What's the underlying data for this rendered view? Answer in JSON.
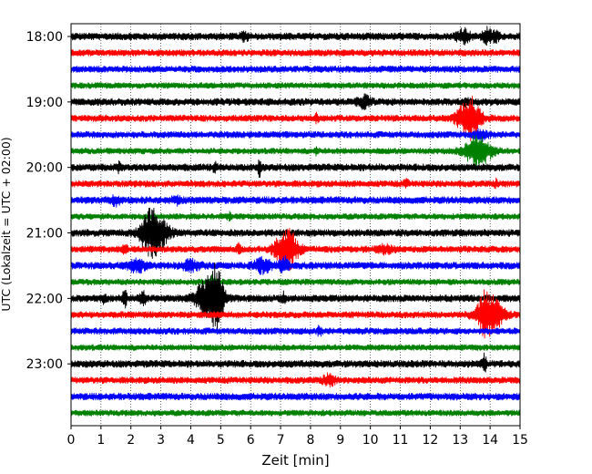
{
  "chart_data": {
    "type": "line",
    "title": "",
    "xlabel": "Zeit  [min]",
    "ylabel": "UTC (Lokalzeit = UTC + 02:00)",
    "xlim": [
      0,
      15
    ],
    "x_ticks": [
      0,
      1,
      2,
      3,
      4,
      5,
      6,
      7,
      8,
      9,
      10,
      11,
      12,
      13,
      14,
      15
    ],
    "x_tick_labels": [
      "0",
      "1",
      "2",
      "3",
      "4",
      "5",
      "6",
      "7",
      "8",
      "9",
      "10",
      "11",
      "12",
      "13",
      "14",
      "15"
    ],
    "y_tick_labels": [
      "18:00",
      "19:00",
      "20:00",
      "21:00",
      "22:00",
      "23:00"
    ],
    "y_tick_traces": [
      0,
      4,
      8,
      12,
      16,
      20
    ],
    "trace_minutes": 15,
    "grid": "vertical dotted lines at each minute",
    "color_cycle": [
      "#000000",
      "#ff0000",
      "#0000ff",
      "#008000"
    ],
    "traces": [
      {
        "start": "18:00",
        "color": "#000000",
        "amp": 0.6,
        "events": [
          {
            "t": 13.1,
            "a": 1.2,
            "w": 0.15
          },
          {
            "t": 13.9,
            "a": 1.3,
            "w": 0.1
          },
          {
            "t": 14.2,
            "a": 0.8,
            "w": 0.08
          },
          {
            "t": 5.8,
            "a": 0.5,
            "w": 0.1
          }
        ]
      },
      {
        "start": "18:15",
        "color": "#ff0000",
        "amp": 0.55,
        "events": []
      },
      {
        "start": "18:30",
        "color": "#0000ff",
        "amp": 0.55,
        "events": []
      },
      {
        "start": "18:45",
        "color": "#008000",
        "amp": 0.5,
        "events": []
      },
      {
        "start": "19:00",
        "color": "#000000",
        "amp": 0.6,
        "events": [
          {
            "t": 9.8,
            "a": 0.9,
            "w": 0.15
          },
          {
            "t": 13.2,
            "a": 0.5,
            "w": 0.1
          }
        ]
      },
      {
        "start": "19:15",
        "color": "#ff0000",
        "amp": 0.55,
        "events": [
          {
            "t": 13.3,
            "a": 3.5,
            "w": 0.25
          },
          {
            "t": 8.2,
            "a": 0.6,
            "w": 0.04
          }
        ]
      },
      {
        "start": "19:30",
        "color": "#0000ff",
        "amp": 0.55,
        "events": [
          {
            "t": 13.7,
            "a": 0.7,
            "w": 0.15
          }
        ]
      },
      {
        "start": "19:45",
        "color": "#008000",
        "amp": 0.5,
        "events": [
          {
            "t": 13.6,
            "a": 2.5,
            "w": 0.3
          },
          {
            "t": 8.2,
            "a": 0.6,
            "w": 0.04
          }
        ]
      },
      {
        "start": "20:00",
        "color": "#000000",
        "amp": 0.6,
        "events": [
          {
            "t": 6.3,
            "a": 1.2,
            "w": 0.04
          },
          {
            "t": 1.6,
            "a": 0.6,
            "w": 0.05
          },
          {
            "t": 4.8,
            "a": 0.6,
            "w": 0.05
          }
        ]
      },
      {
        "start": "20:15",
        "color": "#ff0000",
        "amp": 0.55,
        "events": [
          {
            "t": 11.2,
            "a": 0.6,
            "w": 0.05
          },
          {
            "t": 14.2,
            "a": 0.5,
            "w": 0.05
          }
        ]
      },
      {
        "start": "20:30",
        "color": "#0000ff",
        "amp": 0.6,
        "events": [
          {
            "t": 1.5,
            "a": 0.7,
            "w": 0.1
          },
          {
            "t": 3.5,
            "a": 0.5,
            "w": 0.1
          }
        ]
      },
      {
        "start": "20:45",
        "color": "#008000",
        "amp": 0.5,
        "events": [
          {
            "t": 5.3,
            "a": 0.6,
            "w": 0.05
          }
        ]
      },
      {
        "start": "21:00",
        "color": "#000000",
        "amp": 0.6,
        "events": [
          {
            "t": 2.6,
            "a": 2.8,
            "w": 0.2
          },
          {
            "t": 2.9,
            "a": 2.5,
            "w": 0.25
          }
        ]
      },
      {
        "start": "21:15",
        "color": "#ff0000",
        "amp": 0.55,
        "events": [
          {
            "t": 7.2,
            "a": 3.5,
            "w": 0.25
          },
          {
            "t": 5.6,
            "a": 1.0,
            "w": 0.04
          },
          {
            "t": 1.8,
            "a": 0.7,
            "w": 0.05
          },
          {
            "t": 10.5,
            "a": 0.5,
            "w": 0.2
          }
        ]
      },
      {
        "start": "21:30",
        "color": "#0000ff",
        "amp": 0.6,
        "events": [
          {
            "t": 2.2,
            "a": 0.9,
            "w": 0.2
          },
          {
            "t": 4.0,
            "a": 0.8,
            "w": 0.2
          },
          {
            "t": 6.4,
            "a": 1.0,
            "w": 0.2
          },
          {
            "t": 7.1,
            "a": 1.5,
            "w": 0.1
          }
        ]
      },
      {
        "start": "21:45",
        "color": "#008000",
        "amp": 0.5,
        "events": [
          {
            "t": 4.7,
            "a": 1.0,
            "w": 0.1
          }
        ]
      },
      {
        "start": "22:00",
        "color": "#000000",
        "amp": 0.6,
        "events": [
          {
            "t": 4.6,
            "a": 3.5,
            "w": 0.3
          },
          {
            "t": 4.85,
            "a": 3.0,
            "w": 0.15
          },
          {
            "t": 1.8,
            "a": 1.5,
            "w": 0.05
          },
          {
            "t": 2.4,
            "a": 1.0,
            "w": 0.08
          },
          {
            "t": 1.1,
            "a": 0.6,
            "w": 0.05
          },
          {
            "t": 7.1,
            "a": 0.8,
            "w": 0.05
          }
        ]
      },
      {
        "start": "22:15",
        "color": "#ff0000",
        "amp": 0.55,
        "events": [
          {
            "t": 14.0,
            "a": 3.0,
            "w": 0.3
          },
          {
            "t": 13.8,
            "a": 1.5,
            "w": 0.1
          }
        ]
      },
      {
        "start": "22:30",
        "color": "#0000ff",
        "amp": 0.55,
        "events": [
          {
            "t": 8.3,
            "a": 0.6,
            "w": 0.05
          }
        ]
      },
      {
        "start": "22:45",
        "color": "#008000",
        "amp": 0.5,
        "events": []
      },
      {
        "start": "23:00",
        "color": "#000000",
        "amp": 0.6,
        "events": [
          {
            "t": 13.8,
            "a": 1.5,
            "w": 0.05
          }
        ]
      },
      {
        "start": "23:15",
        "color": "#ff0000",
        "amp": 0.55,
        "events": [
          {
            "t": 8.6,
            "a": 0.8,
            "w": 0.15
          }
        ]
      },
      {
        "start": "23:30",
        "color": "#0000ff",
        "amp": 0.6,
        "events": []
      },
      {
        "start": "23:45",
        "color": "#008000",
        "amp": 0.5,
        "events": []
      }
    ]
  }
}
